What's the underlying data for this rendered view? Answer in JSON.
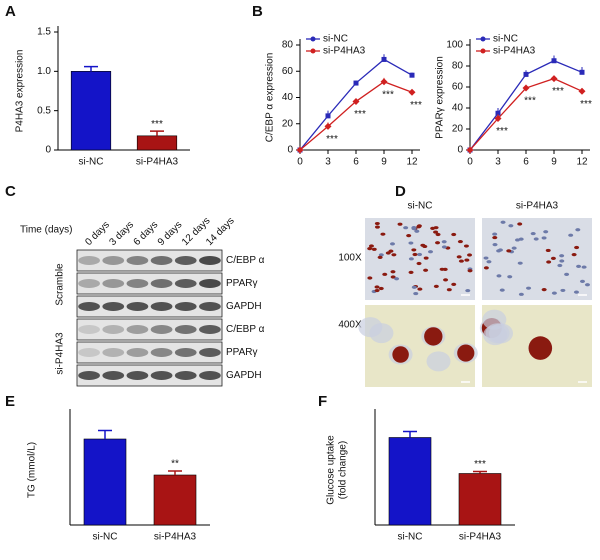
{
  "chart_data": [
    {
      "type": "bar",
      "panel": "A",
      "ylabel": [
        "P4HA3 expression"
      ],
      "categories": [
        "si-NC",
        "si-P4HA3"
      ],
      "values": [
        1.0,
        0.18
      ],
      "errors": [
        0.06,
        0.06
      ],
      "colors": [
        "#1414c8",
        "#a81414"
      ],
      "ylim": [
        0,
        1.5
      ],
      "yticks": [
        0,
        0.5,
        {
          "value": 1,
          "label": "1.0"
        },
        1.5
      ],
      "annotation": "***"
    },
    {
      "type": "line",
      "panel": "B",
      "ylabel": [
        "C/EBP α expression"
      ],
      "x": [
        0,
        3,
        6,
        9,
        12
      ],
      "series": [
        {
          "name": "si-NC",
          "color": "#2a2ab8",
          "values": [
            0,
            26,
            51,
            69,
            57
          ],
          "errors": [
            0,
            4,
            2,
            4,
            2
          ]
        },
        {
          "name": "si-P4HA3",
          "color": "#d02020",
          "values": [
            0,
            18,
            37,
            52,
            44
          ],
          "errors": [
            0,
            3,
            2,
            3,
            2
          ]
        }
      ],
      "xlim": [
        0,
        12
      ],
      "xticks": [
        0,
        3,
        6,
        9,
        12
      ],
      "ylim": [
        0,
        80
      ],
      "yticks": [
        0,
        20,
        40,
        60,
        80
      ],
      "annotation": "***"
    },
    {
      "type": "line",
      "ylabel": [
        "PPARγ expression"
      ],
      "x": [
        0,
        3,
        6,
        9,
        12
      ],
      "series": [
        {
          "name": "si-NC",
          "color": "#2a2ab8",
          "values": [
            0,
            35,
            72,
            85,
            74
          ],
          "errors": [
            0,
            5,
            4,
            5,
            5
          ]
        },
        {
          "name": "si-P4HA3",
          "color": "#d02020",
          "values": [
            0,
            30,
            59,
            68,
            56
          ],
          "errors": [
            0,
            4,
            3,
            3,
            3
          ]
        }
      ],
      "xlim": [
        0,
        12
      ],
      "xticks": [
        0,
        3,
        6,
        9,
        12
      ],
      "ylim": [
        0,
        100
      ],
      "yticks": [
        0,
        20,
        40,
        60,
        80,
        100
      ],
      "annotation": "***"
    },
    {
      "type": "bar",
      "panel": "E",
      "ylabel": [
        "TG (mmol/L)"
      ],
      "categories": [
        "si-NC",
        "si-P4HA3"
      ],
      "values": [
        1.72,
        1.0
      ],
      "errors": [
        0.17,
        0.08
      ],
      "colors": [
        "#1414c8",
        "#a81414"
      ],
      "ylim": [
        0,
        2.2
      ],
      "annotation": "**"
    },
    {
      "type": "bar",
      "panel": "F",
      "ylabel": [
        "Glucose uptake",
        "(fold change)"
      ],
      "categories": [
        "si-NC",
        "si-P4HA3"
      ],
      "values": [
        1.75,
        1.03
      ],
      "errors": [
        0.12,
        0.04
      ],
      "colors": [
        "#1414c8",
        "#a81414"
      ],
      "ylim": [
        0,
        2.2
      ],
      "annotation": "***"
    }
  ],
  "blot": {
    "panel": "C",
    "time_label": "Time (days)",
    "lanes": [
      "0 days",
      "3 days",
      "6 days",
      "9 days",
      "12 days",
      "14 days"
    ],
    "groups": [
      {
        "name": "Scramble",
        "bands": [
          "C/EBP α",
          "PPARγ",
          "GAPDH"
        ]
      },
      {
        "name": "si-P4HA3",
        "bands": [
          "C/EBP α",
          "PPARγ",
          "GAPDH"
        ]
      }
    ]
  },
  "micrographs": {
    "panel": "D",
    "columns": [
      "si-NC",
      "si-P4HA3"
    ],
    "rows": [
      "100X",
      "400X"
    ]
  }
}
